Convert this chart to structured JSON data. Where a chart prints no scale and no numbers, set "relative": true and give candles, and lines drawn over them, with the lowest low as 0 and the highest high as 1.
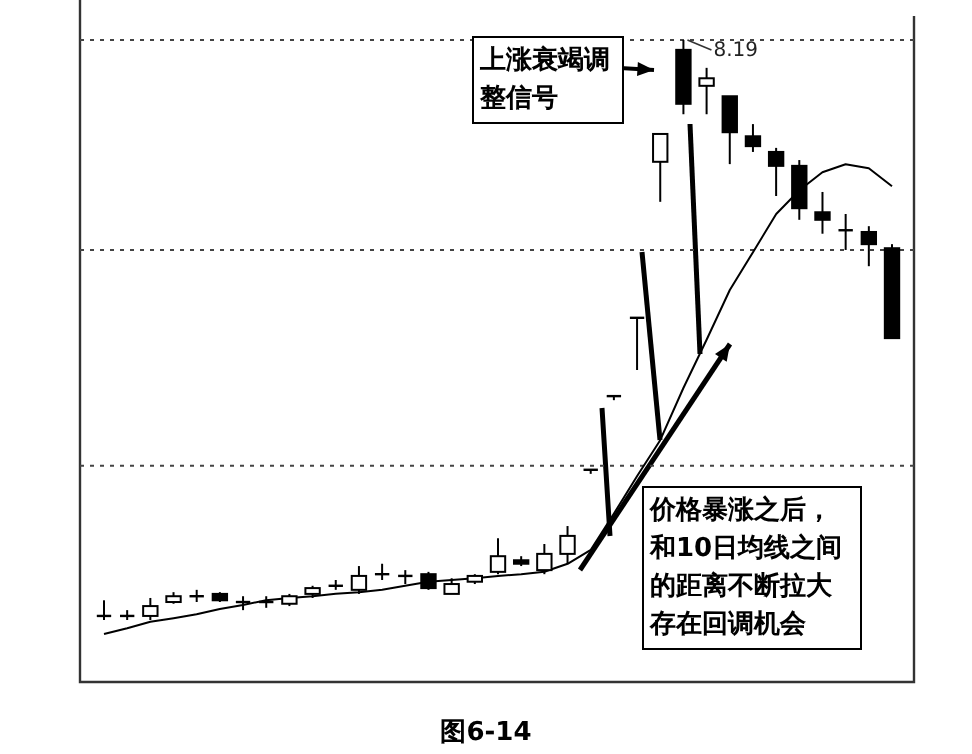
{
  "chart_data": {
    "type": "candlestick",
    "relative": true,
    "categories": [
      null,
      null,
      null,
      null,
      null,
      null,
      null,
      null,
      null,
      null,
      null,
      null,
      null,
      null,
      null,
      null,
      null,
      null,
      null,
      null,
      null,
      null,
      null,
      null,
      null,
      null,
      null,
      null,
      null,
      null,
      null,
      null,
      null,
      null,
      null
    ],
    "ohlc": [
      [
        0.007,
        0.034,
        0,
        0.007
      ],
      [
        0.007,
        0.017,
        0,
        0.007
      ],
      [
        0.007,
        0.038,
        0,
        0.024
      ],
      [
        0.031,
        0.048,
        0.028,
        0.041
      ],
      [
        0.041,
        0.052,
        0.031,
        0.041
      ],
      [
        0.045,
        0.048,
        0.031,
        0.034
      ],
      [
        0.031,
        0.041,
        0.017,
        0.031
      ],
      [
        0.031,
        0.041,
        0.021,
        0.031
      ],
      [
        0.028,
        0.045,
        0.024,
        0.041
      ],
      [
        0.045,
        0.059,
        0.038,
        0.055
      ],
      [
        0.059,
        0.069,
        0.052,
        0.059
      ],
      [
        0.052,
        0.093,
        0.045,
        0.076
      ],
      [
        0.079,
        0.097,
        0.069,
        0.079
      ],
      [
        0.076,
        0.086,
        0.062,
        0.076
      ],
      [
        0.079,
        0.083,
        0.052,
        0.055
      ],
      [
        0.045,
        0.072,
        0.045,
        0.062
      ],
      [
        0.066,
        0.079,
        0.062,
        0.076
      ],
      [
        0.083,
        0.141,
        0.079,
        0.11
      ],
      [
        0.103,
        0.11,
        0.093,
        0.097
      ],
      [
        0.086,
        0.131,
        0.079,
        0.114
      ],
      [
        0.114,
        0.162,
        0.097,
        0.145
      ],
      [
        0.259,
        0.259,
        0.252,
        0.259
      ],
      [
        0.386,
        0.386,
        0.379,
        0.386
      ],
      [
        0.521,
        0.521,
        0.431,
        0.521
      ],
      [
        0.79,
        0.838,
        0.721,
        0.838
      ],
      [
        0.983,
        1,
        0.872,
        0.89
      ],
      [
        0.921,
        0.952,
        0.872,
        0.934
      ],
      [
        0.903,
        0.903,
        0.786,
        0.841
      ],
      [
        0.834,
        0.855,
        0.807,
        0.817
      ],
      [
        0.807,
        0.814,
        0.731,
        0.783
      ],
      [
        0.783,
        0.793,
        0.69,
        0.71
      ],
      [
        0.703,
        0.738,
        0.666,
        0.69
      ],
      [
        0.672,
        0.7,
        0.638,
        0.672
      ],
      [
        0.669,
        0.679,
        0.61,
        0.648
      ],
      [
        0.641,
        0.648,
        0.486,
        0.486
      ]
    ],
    "series": [
      {
        "type": "line",
        "color": "#000000",
        "values": [
          -0.024,
          -0.014,
          -0.003,
          0.003,
          0.01,
          0.019,
          0.026,
          0.034,
          0.038,
          0.041,
          0.045,
          0.048,
          0.052,
          0.059,
          0.066,
          0.069,
          0.072,
          0.076,
          0.079,
          0.083,
          0.097,
          0.121,
          0.183,
          0.248,
          0.31,
          0.4,
          0.483,
          0.569,
          0.634,
          0.7,
          0.741,
          0.772,
          0.786,
          0.779,
          0.748
        ]
      }
    ],
    "ref_lines": [
      {
        "axis": "y",
        "value": 0.266,
        "line_style": "dotted"
      },
      {
        "axis": "y",
        "value": 0.638,
        "line_style": "dotted"
      },
      {
        "axis": "y",
        "value": 1,
        "line_style": "dotted"
      }
    ],
    "annotations": [
      {
        "text": "8.19",
        "y": 1
      },
      "上涨衰竭调整信号",
      "价格暴涨之后，和10日均线之间的距离不断拉大存在回调机会",
      "图6-14"
    ]
  }
}
